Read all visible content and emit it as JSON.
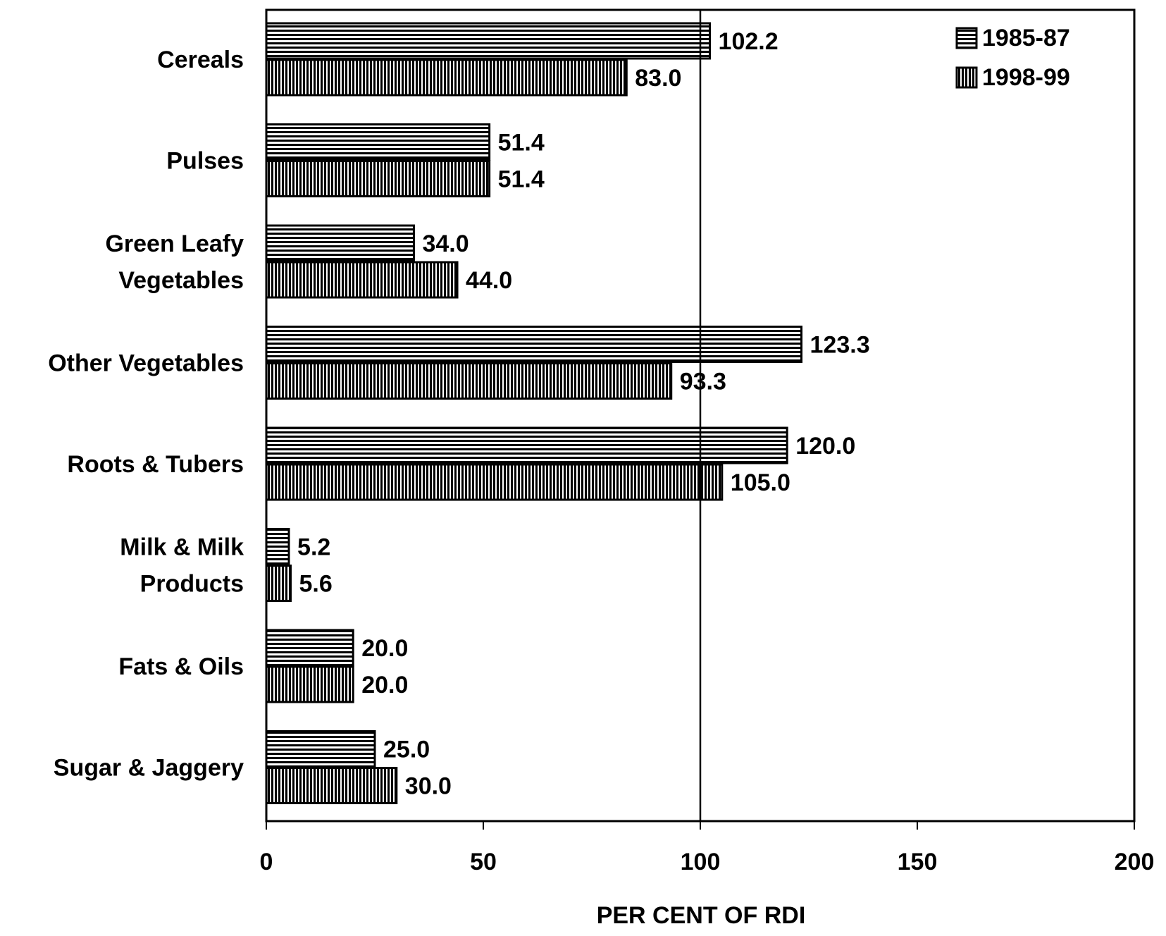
{
  "chart_data": {
    "type": "bar",
    "orientation": "horizontal",
    "title": "",
    "xlabel": "PER CENT OF RDI",
    "ylabel": "",
    "xlim": [
      0,
      200
    ],
    "x_ticks": [
      "0",
      "50",
      "100",
      "150",
      "200"
    ],
    "reference_line": 100,
    "grid": false,
    "legend_position": "top-right",
    "categories": [
      [
        "Cereals"
      ],
      [
        "Pulses"
      ],
      [
        "Green Leafy",
        "Vegetables"
      ],
      [
        "Other Vegetables"
      ],
      [
        "Roots & Tubers"
      ],
      [
        "Milk & Milk",
        "Products"
      ],
      [
        "Fats & Oils"
      ],
      [
        "Sugar & Jaggery"
      ]
    ],
    "series": [
      {
        "name": "1985-87",
        "pattern": "horizontal-stripes",
        "values": [
          102.2,
          51.4,
          34.0,
          123.3,
          120.0,
          5.2,
          20.0,
          25.0
        ],
        "labels": [
          "102.2",
          "51.4",
          "34.0",
          "123.3",
          "120.0",
          "5.2",
          "20.0",
          "25.0"
        ]
      },
      {
        "name": "1998-99",
        "pattern": "vertical-stripes",
        "values": [
          83.0,
          51.4,
          44.0,
          93.3,
          105.0,
          5.6,
          20.0,
          30.0
        ],
        "labels": [
          "83.0",
          "51.4",
          "44.0",
          "93.3",
          "105.0",
          "5.6",
          "20.0",
          "30.0"
        ]
      }
    ]
  },
  "colors": {
    "ink": "#000000",
    "background": "#ffffff"
  }
}
